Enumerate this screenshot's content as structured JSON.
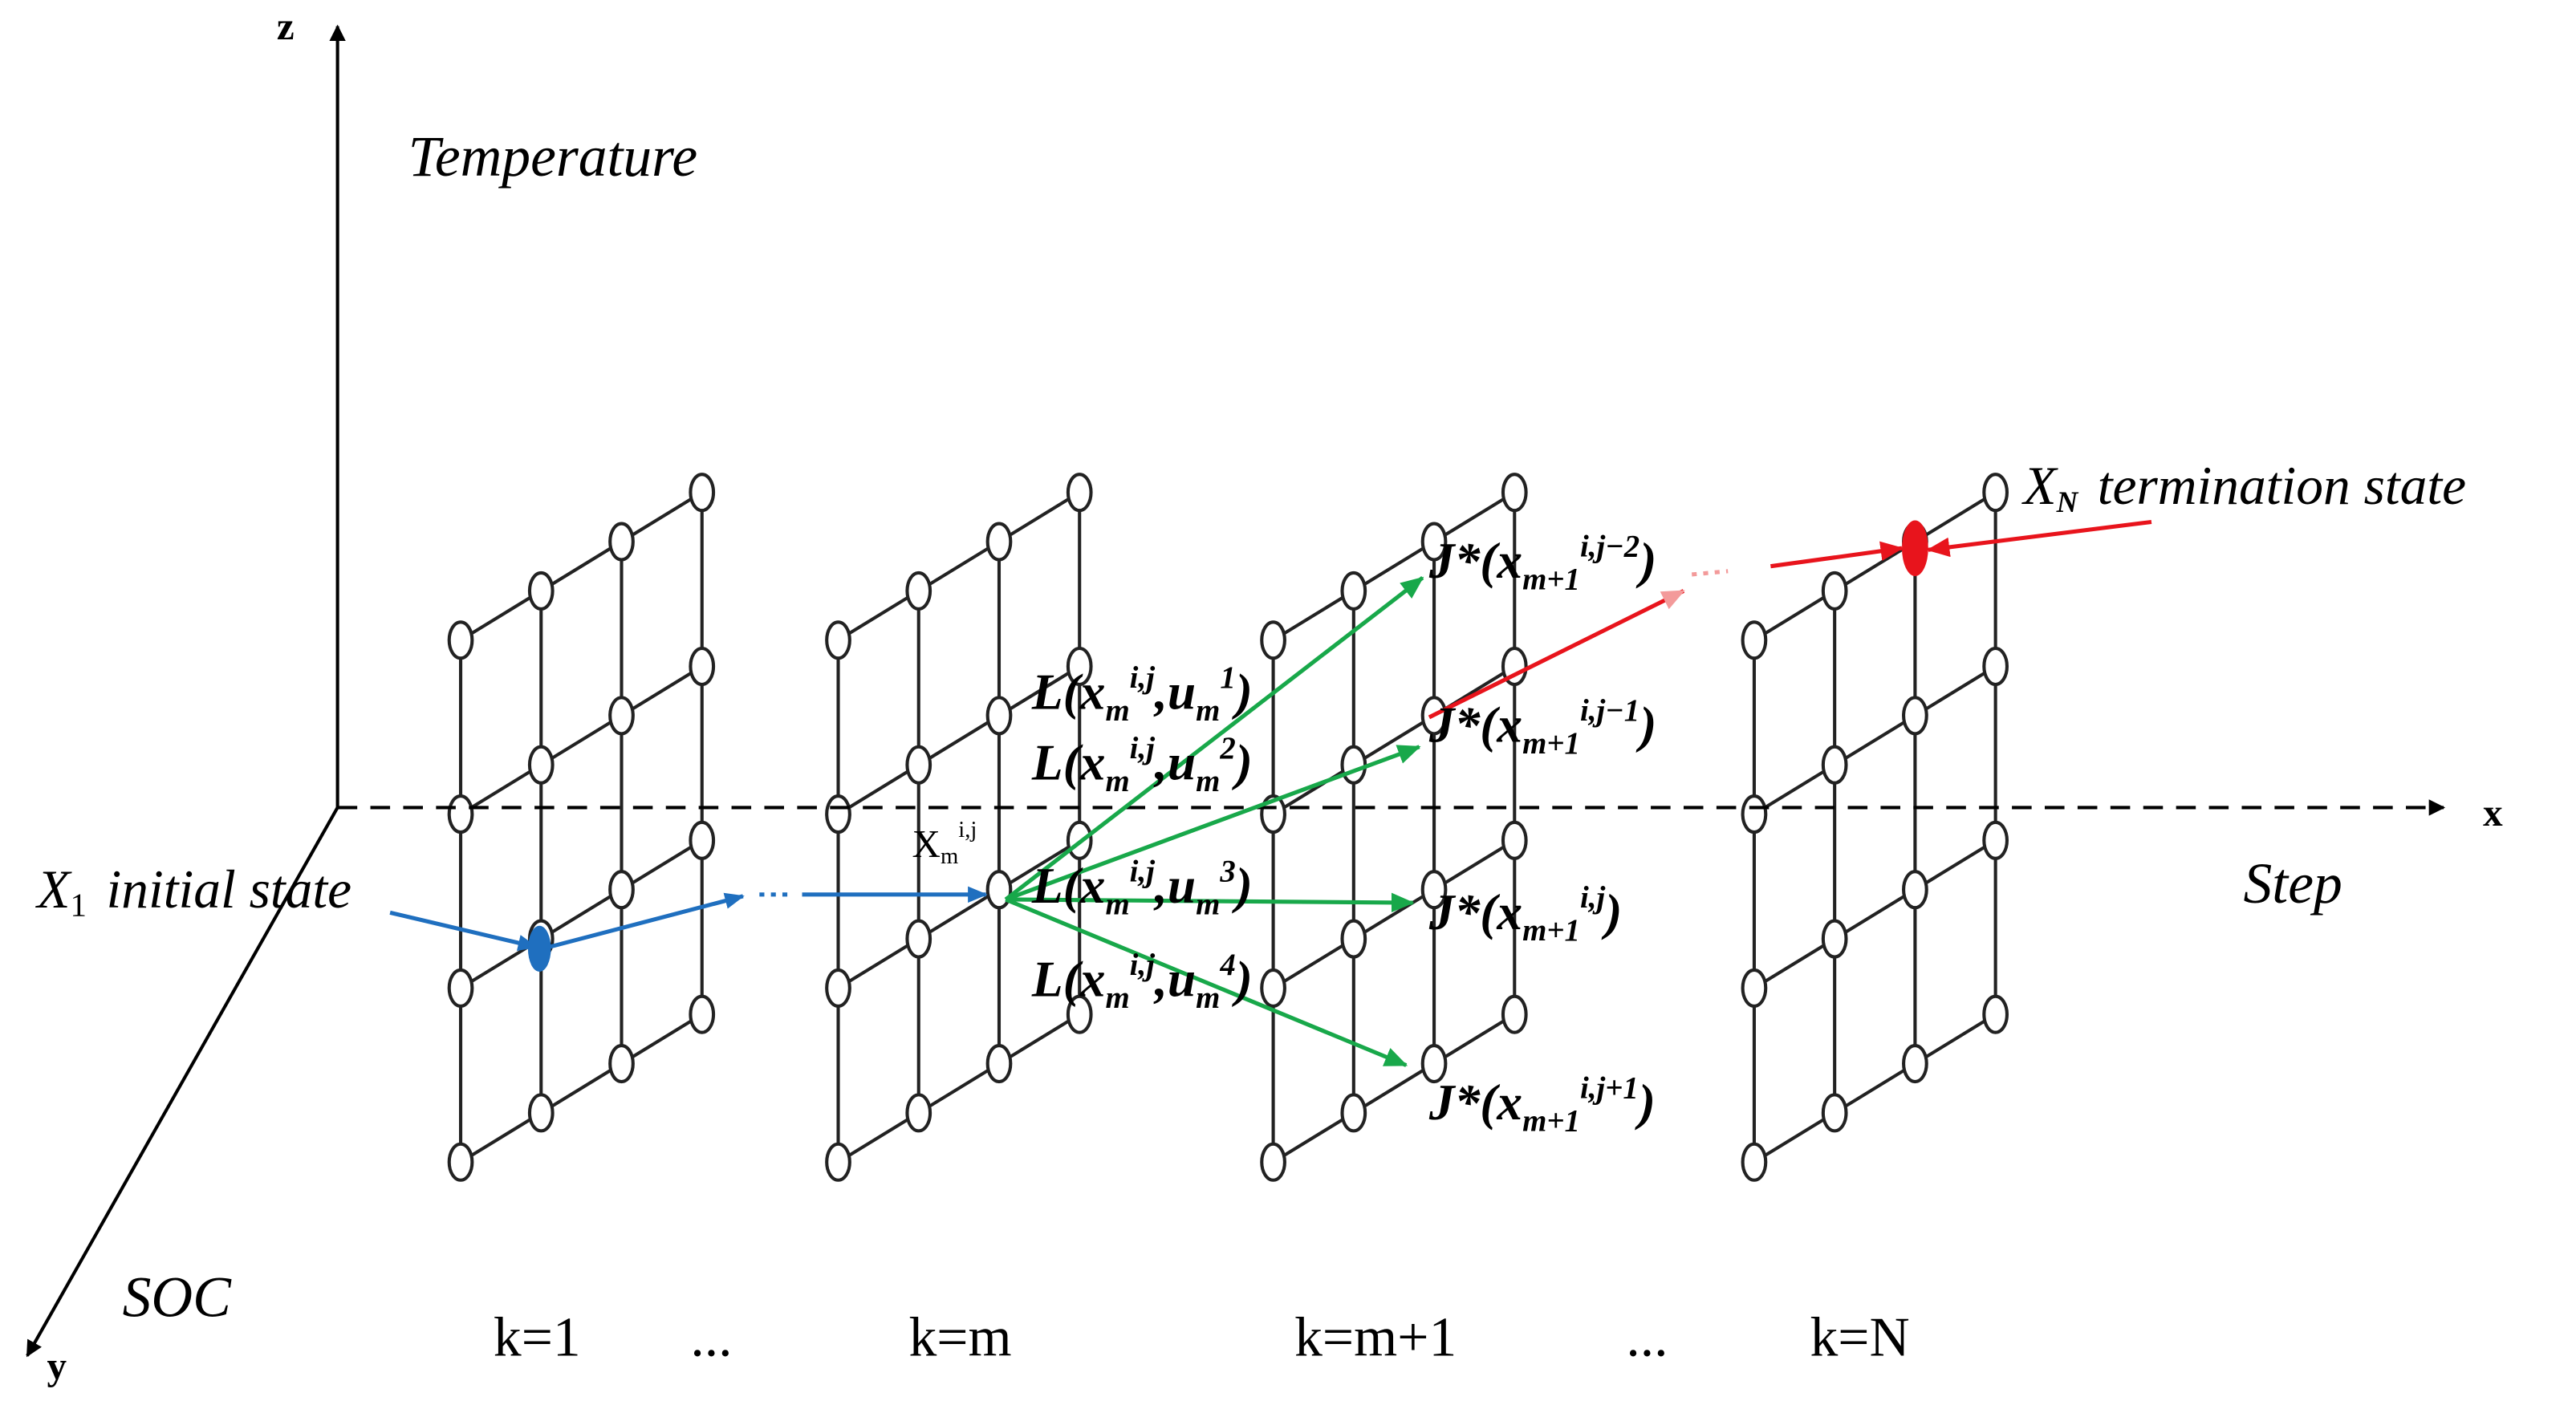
{
  "axes": {
    "z": "z",
    "x": "x",
    "y": "y",
    "temperature": "Temperature",
    "step": "Step",
    "soc": "SOC"
  },
  "initial": {
    "symbol": "X",
    "sub": "1",
    "label": "initial state"
  },
  "terminal": {
    "symbol": "X",
    "sub": "N",
    "label": "termination state"
  },
  "node_label": {
    "head": "X",
    "sub": "m",
    "sup": "i,j"
  },
  "stages": [
    "k=1",
    "...",
    "k=m",
    "k=m+1",
    "...",
    "k=N"
  ],
  "costs": [
    {
      "head": "L(x",
      "sub": "m",
      "sup": "i,j",
      "sep": ",u",
      "sub2": "m",
      "sup2": "1",
      "tail": ")"
    },
    {
      "head": "L(x",
      "sub": "m",
      "sup": "i,j",
      "sep": ",u",
      "sub2": "m",
      "sup2": "2",
      "tail": ")"
    },
    {
      "head": "L(x",
      "sub": "m",
      "sup": "i,j",
      "sep": ",u",
      "sub2": "m",
      "sup2": "3",
      "tail": ")"
    },
    {
      "head": "L(x",
      "sub": "m",
      "sup": "i,j",
      "sep": ",u",
      "sub2": "m",
      "sup2": "4",
      "tail": ")"
    }
  ],
  "values": [
    {
      "head": "J*(x",
      "sub": "m+1",
      "sup": "i,j−2",
      "tail": ")"
    },
    {
      "head": "J*(x",
      "sub": "m+1",
      "sup": "i,j−1",
      "tail": ")"
    },
    {
      "head": "J*(x",
      "sub": "m+1",
      "sup": "i,j",
      "tail": ")"
    },
    {
      "head": "J*(x",
      "sub": "m+1",
      "sup": "i,j+1",
      "tail": ")"
    }
  ]
}
